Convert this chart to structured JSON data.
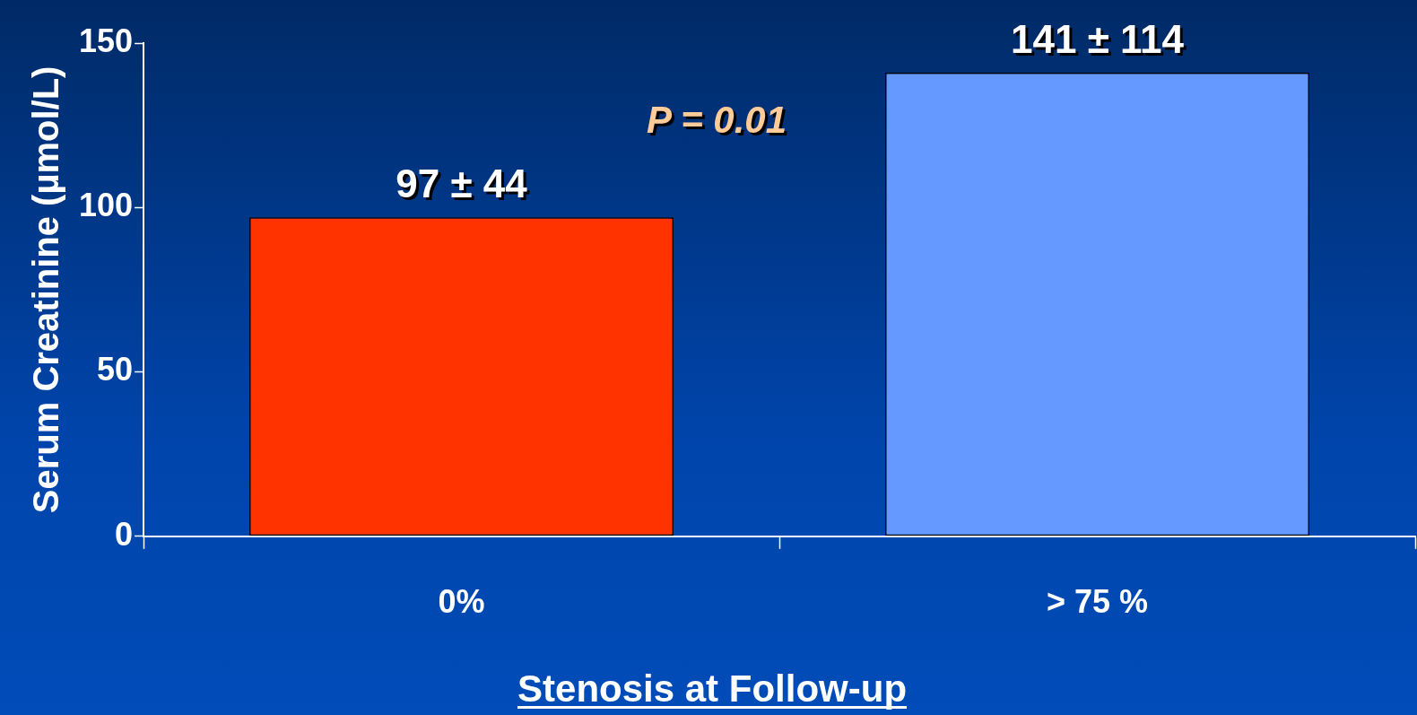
{
  "chart_data": {
    "type": "bar",
    "xlabel": "Stenosis at Follow-up",
    "ylabel": "Serum Creatinine (µmol/L)",
    "categories": [
      "0%",
      "> 75 %"
    ],
    "values": [
      97,
      141
    ],
    "colors": [
      "#ff3300",
      "#6699ff"
    ],
    "value_labels": [
      "97 ± 44",
      "141 ± 114"
    ],
    "ylim": [
      0,
      150
    ],
    "yticks": [
      0,
      50,
      100,
      150
    ],
    "annotations": [
      "P = 0.01"
    ],
    "grid": false,
    "legend": false
  }
}
